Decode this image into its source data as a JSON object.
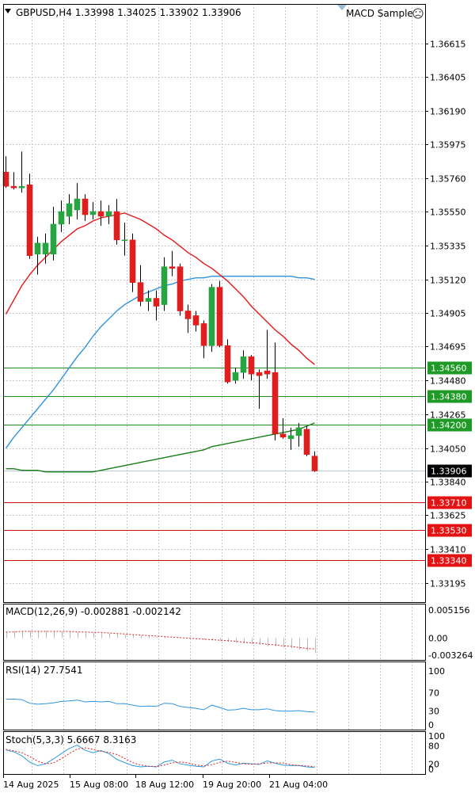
{
  "header": {
    "symbol_line": "GBPUSD,H4  1.33998 1.34025 1.33902 1.33906",
    "expert_name": "MACD Sample",
    "expert_icon": "sad-face-icon"
  },
  "colors": {
    "bull": "#26a541",
    "bear": "#e01e1e",
    "ma_fast": "#e31a1c",
    "ma_mid": "#2f93e0",
    "ma_slow": "#1a7f1a",
    "grid": "#c8c8c8",
    "support_line": "#1e8c1e",
    "resistance_line": "#d01010",
    "current_price": "#000000"
  },
  "chart_data": [
    {
      "type": "candlestick",
      "name": "price",
      "ylim": [
        1.331,
        1.3675
      ],
      "yticks": [
        "1.36615",
        "1.36405",
        "1.36190",
        "1.35975",
        "1.35760",
        "1.35550",
        "1.35335",
        "1.35120",
        "1.34905",
        "1.34695",
        "1.34480",
        "1.34265",
        "1.34050",
        "1.33840",
        "1.33625",
        "1.33410",
        "1.33195"
      ],
      "candles": [
        {
          "o": 1.358,
          "h": 1.359,
          "l": 1.357,
          "c": 1.3571
        },
        {
          "o": 1.3571,
          "h": 1.358,
          "l": 1.3569,
          "c": 1.357
        },
        {
          "o": 1.357,
          "h": 1.3593,
          "l": 1.3567,
          "c": 1.3571
        },
        {
          "o": 1.3572,
          "h": 1.3579,
          "l": 1.3525,
          "c": 1.3527
        },
        {
          "o": 1.3528,
          "h": 1.3539,
          "l": 1.3515,
          "c": 1.3535
        },
        {
          "o": 1.3528,
          "h": 1.3541,
          "l": 1.3522,
          "c": 1.3535
        },
        {
          "o": 1.3528,
          "h": 1.3558,
          "l": 1.3524,
          "c": 1.3547
        },
        {
          "o": 1.3547,
          "h": 1.3562,
          "l": 1.3542,
          "c": 1.3555
        },
        {
          "o": 1.3552,
          "h": 1.3566,
          "l": 1.3547,
          "c": 1.356
        },
        {
          "o": 1.3556,
          "h": 1.3573,
          "l": 1.355,
          "c": 1.3563
        },
        {
          "o": 1.3563,
          "h": 1.3566,
          "l": 1.3549,
          "c": 1.3553
        },
        {
          "o": 1.3553,
          "h": 1.3561,
          "l": 1.355,
          "c": 1.3555
        },
        {
          "o": 1.3555,
          "h": 1.3562,
          "l": 1.3546,
          "c": 1.3552
        },
        {
          "o": 1.3552,
          "h": 1.3559,
          "l": 1.3547,
          "c": 1.3555
        },
        {
          "o": 1.3555,
          "h": 1.3563,
          "l": 1.3534,
          "c": 1.3537
        },
        {
          "o": 1.3537,
          "h": 1.3548,
          "l": 1.3527,
          "c": 1.3537
        },
        {
          "o": 1.3537,
          "h": 1.3541,
          "l": 1.3504,
          "c": 1.351
        },
        {
          "o": 1.351,
          "h": 1.3521,
          "l": 1.3495,
          "c": 1.3498
        },
        {
          "o": 1.3498,
          "h": 1.3505,
          "l": 1.3492,
          "c": 1.35
        },
        {
          "o": 1.35,
          "h": 1.3505,
          "l": 1.3486,
          "c": 1.3495
        },
        {
          "o": 1.3496,
          "h": 1.3526,
          "l": 1.3492,
          "c": 1.352
        },
        {
          "o": 1.352,
          "h": 1.353,
          "l": 1.3514,
          "c": 1.3519
        },
        {
          "o": 1.352,
          "h": 1.3522,
          "l": 1.3489,
          "c": 1.3492
        },
        {
          "o": 1.3492,
          "h": 1.3496,
          "l": 1.3478,
          "c": 1.3487
        },
        {
          "o": 1.3489,
          "h": 1.3492,
          "l": 1.3479,
          "c": 1.3483
        },
        {
          "o": 1.3484,
          "h": 1.3486,
          "l": 1.3462,
          "c": 1.347
        },
        {
          "o": 1.347,
          "h": 1.3509,
          "l": 1.3466,
          "c": 1.3507
        },
        {
          "o": 1.3507,
          "h": 1.3511,
          "l": 1.3469,
          "c": 1.347
        },
        {
          "o": 1.347,
          "h": 1.3474,
          "l": 1.3446,
          "c": 1.3447
        },
        {
          "o": 1.3448,
          "h": 1.3456,
          "l": 1.3446,
          "c": 1.3453
        },
        {
          "o": 1.3453,
          "h": 1.3467,
          "l": 1.3449,
          "c": 1.3463
        },
        {
          "o": 1.3463,
          "h": 1.3464,
          "l": 1.3448,
          "c": 1.3452
        },
        {
          "o": 1.3453,
          "h": 1.3455,
          "l": 1.343,
          "c": 1.3451
        },
        {
          "o": 1.3454,
          "h": 1.348,
          "l": 1.3449,
          "c": 1.3452
        },
        {
          "o": 1.3453,
          "h": 1.3472,
          "l": 1.341,
          "c": 1.3414
        },
        {
          "o": 1.3414,
          "h": 1.3424,
          "l": 1.3411,
          "c": 1.3412
        },
        {
          "o": 1.3411,
          "h": 1.3418,
          "l": 1.3404,
          "c": 1.3413
        },
        {
          "o": 1.3413,
          "h": 1.3421,
          "l": 1.3406,
          "c": 1.3418
        },
        {
          "o": 1.3417,
          "h": 1.3419,
          "l": 1.34,
          "c": 1.3401
        },
        {
          "o": 1.34,
          "h": 1.3403,
          "l": 1.339,
          "c": 1.33906
        }
      ],
      "ma_fast": [
        1.349,
        1.3499,
        1.3508,
        1.3515,
        1.3521,
        1.3526,
        1.3531,
        1.3536,
        1.354,
        1.3544,
        1.3546,
        1.3549,
        1.3551,
        1.3552,
        1.3553,
        1.3554,
        1.3552,
        1.355,
        1.3547,
        1.3544,
        1.354,
        1.3537,
        1.3533,
        1.3529,
        1.3526,
        1.3522,
        1.3519,
        1.3515,
        1.3511,
        1.3506,
        1.3501,
        1.3495,
        1.349,
        1.3485,
        1.348,
        1.3476,
        1.3471,
        1.3467,
        1.3462,
        1.3458
      ],
      "ma_mid": [
        1.3405,
        1.3412,
        1.3418,
        1.3424,
        1.343,
        1.3436,
        1.3442,
        1.3449,
        1.3456,
        1.3463,
        1.3469,
        1.3476,
        1.3482,
        1.3487,
        1.3492,
        1.3496,
        1.3499,
        1.3502,
        1.3504,
        1.3506,
        1.3508,
        1.3509,
        1.3511,
        1.3512,
        1.3513,
        1.3513,
        1.3514,
        1.3514,
        1.3514,
        1.3514,
        1.3514,
        1.3514,
        1.3514,
        1.3514,
        1.3514,
        1.3514,
        1.3514,
        1.3513,
        1.3513,
        1.3512
      ],
      "ma_slow": [
        1.3392,
        1.3392,
        1.3391,
        1.3391,
        1.3391,
        1.339,
        1.339,
        1.339,
        1.339,
        1.339,
        1.339,
        1.339,
        1.3391,
        1.3392,
        1.3393,
        1.3394,
        1.3395,
        1.3396,
        1.3397,
        1.3398,
        1.3399,
        1.34,
        1.3401,
        1.3402,
        1.3403,
        1.3404,
        1.3406,
        1.3407,
        1.3408,
        1.3409,
        1.341,
        1.3411,
        1.3412,
        1.3413,
        1.3414,
        1.3415,
        1.3416,
        1.3417,
        1.3419,
        1.3421
      ],
      "levels": [
        {
          "label": "1.34560",
          "value": 1.3456,
          "kind": "support"
        },
        {
          "label": "1.34380",
          "value": 1.3438,
          "kind": "support"
        },
        {
          "label": "1.34200",
          "value": 1.342,
          "kind": "support"
        },
        {
          "label": "1.33710",
          "value": 1.3371,
          "kind": "resistance"
        },
        {
          "label": "1.33530",
          "value": 1.3353,
          "kind": "resistance"
        },
        {
          "label": "1.33340",
          "value": 1.3334,
          "kind": "resistance"
        }
      ],
      "current_price": {
        "label": "1.33906",
        "value": 1.33906
      }
    },
    {
      "type": "bar",
      "name": "macd",
      "title": "MACD(12,26,9) -0.002881 -0.002142",
      "ylim": [
        -0.0033,
        0.0053
      ],
      "yticks": [
        "0.005156",
        "0.00",
        "-0.003264"
      ],
      "histogram": [
        0.0012,
        0.0013,
        0.0013,
        0.0014,
        0.0014,
        0.0014,
        0.0014,
        0.0013,
        0.0013,
        0.0012,
        0.0011,
        0.0011,
        0.001,
        0.0009,
        0.0008,
        0.0007,
        0.0006,
        0.0005,
        0.0004,
        0.0003,
        0.0002,
        0.0001,
        0.0,
        -0.0001,
        -0.0002,
        -0.0003,
        -0.0004,
        -0.0006,
        -0.0007,
        -0.0009,
        -0.001,
        -0.0012,
        -0.0013,
        -0.0015,
        -0.0016,
        -0.0018,
        -0.002,
        -0.0022,
        -0.0025,
        -0.0029
      ],
      "signal": [
        0.0012,
        0.0012,
        0.0013,
        0.0013,
        0.0013,
        0.0013,
        0.0013,
        0.0013,
        0.0013,
        0.0012,
        0.0012,
        0.0011,
        0.0011,
        0.001,
        0.0009,
        0.0008,
        0.0007,
        0.0006,
        0.0005,
        0.0004,
        0.0003,
        0.0002,
        0.0001,
        0.0,
        -0.0001,
        -0.0002,
        -0.0003,
        -0.0004,
        -0.0005,
        -0.0006,
        -0.0008,
        -0.0009,
        -0.001,
        -0.0012,
        -0.0013,
        -0.0015,
        -0.0016,
        -0.0018,
        -0.002,
        -0.0021
      ]
    },
    {
      "type": "line",
      "name": "rsi",
      "title": "RSI(14) 27.7541",
      "ylim": [
        0,
        100
      ],
      "yticks": [
        "100",
        "70",
        "30",
        "0"
      ],
      "values": [
        56,
        56,
        55,
        47,
        45,
        46,
        48,
        51,
        52,
        54,
        50,
        51,
        50,
        51,
        46,
        46,
        43,
        40,
        41,
        40,
        47,
        46,
        40,
        38,
        36,
        33,
        43,
        38,
        32,
        33,
        36,
        33,
        33,
        35,
        31,
        30,
        30,
        31,
        29,
        27.75
      ]
    },
    {
      "type": "line",
      "name": "stoch",
      "title": "Stoch(5,3,3) 5.6667 8.3163",
      "ylim": [
        0,
        100
      ],
      "yticks": [
        "100",
        "80",
        "20",
        "0"
      ],
      "main": [
        64,
        58,
        45,
        24,
        12,
        18,
        34,
        52,
        69,
        80,
        63,
        55,
        62,
        52,
        33,
        22,
        12,
        8,
        10,
        8,
        24,
        30,
        18,
        14,
        10,
        8,
        27,
        34,
        20,
        14,
        20,
        18,
        16,
        28,
        20,
        14,
        12,
        12,
        8,
        5.67
      ],
      "signal": [
        66,
        61,
        55,
        42,
        27,
        18,
        21,
        35,
        52,
        67,
        71,
        66,
        60,
        56,
        49,
        36,
        22,
        14,
        10,
        9,
        14,
        21,
        24,
        21,
        14,
        11,
        15,
        23,
        27,
        23,
        18,
        17,
        18,
        21,
        21,
        21,
        15,
        13,
        11,
        8.32
      ]
    }
  ],
  "x_axis": {
    "labels": [
      "14 Aug 2025",
      "15 Aug 08:00",
      "18 Aug 12:00",
      "19 Aug 20:00",
      "21 Aug 04:00"
    ],
    "label_index": [
      0,
      10,
      20,
      30,
      40
    ]
  }
}
